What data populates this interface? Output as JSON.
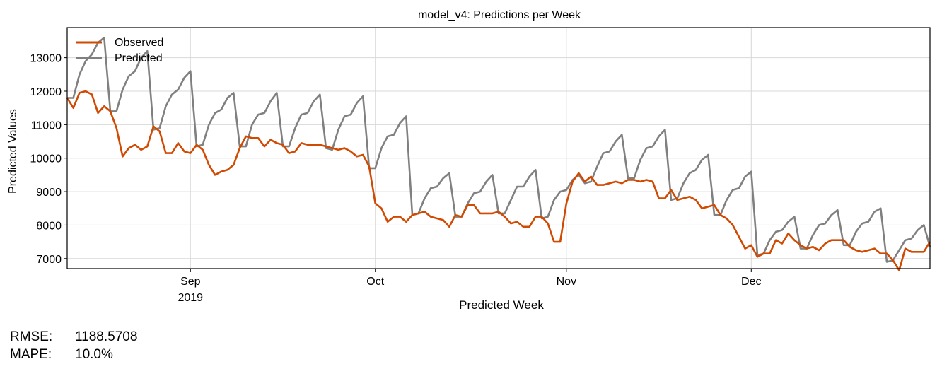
{
  "chart_data": {
    "type": "line",
    "title": "model_v4: Predictions per Week",
    "xlabel": "Predicted Week",
    "ylabel": "Predicted Values",
    "ylim": [
      6700,
      13900
    ],
    "yticks": [
      7000,
      8000,
      9000,
      10000,
      11000,
      12000,
      13000
    ],
    "x_range_day_of_year": [
      224,
      364
    ],
    "xticks": [
      {
        "label": "Sep",
        "sublabel": "2019",
        "day_of_year": 244
      },
      {
        "label": "Oct",
        "sublabel": "",
        "day_of_year": 274
      },
      {
        "label": "Nov",
        "sublabel": "",
        "day_of_year": 305
      },
      {
        "label": "Dec",
        "sublabel": "",
        "day_of_year": 335
      }
    ],
    "grid": true,
    "legend_position": "top-left",
    "series": [
      {
        "name": "Observed",
        "color": "#d04a02",
        "points": [
          [
            224,
            11800
          ],
          [
            225,
            11500
          ],
          [
            226,
            11950
          ],
          [
            227,
            12000
          ],
          [
            228,
            11900
          ],
          [
            229,
            11350
          ],
          [
            230,
            11550
          ],
          [
            231,
            11400
          ],
          [
            232,
            10900
          ],
          [
            233,
            10050
          ],
          [
            234,
            10300
          ],
          [
            235,
            10400
          ],
          [
            236,
            10250
          ],
          [
            237,
            10350
          ],
          [
            238,
            10950
          ],
          [
            239,
            10800
          ],
          [
            240,
            10150
          ],
          [
            241,
            10150
          ],
          [
            242,
            10450
          ],
          [
            243,
            10200
          ],
          [
            244,
            10150
          ],
          [
            245,
            10400
          ],
          [
            246,
            10250
          ],
          [
            247,
            9800
          ],
          [
            248,
            9500
          ],
          [
            249,
            9600
          ],
          [
            250,
            9650
          ],
          [
            251,
            9800
          ],
          [
            252,
            10300
          ],
          [
            253,
            10650
          ],
          [
            254,
            10600
          ],
          [
            255,
            10600
          ],
          [
            256,
            10350
          ],
          [
            257,
            10550
          ],
          [
            258,
            10450
          ],
          [
            259,
            10400
          ],
          [
            260,
            10150
          ],
          [
            261,
            10200
          ],
          [
            262,
            10450
          ],
          [
            263,
            10400
          ],
          [
            264,
            10400
          ],
          [
            265,
            10400
          ],
          [
            266,
            10350
          ],
          [
            267,
            10300
          ],
          [
            268,
            10250
          ],
          [
            269,
            10300
          ],
          [
            270,
            10200
          ],
          [
            271,
            10050
          ],
          [
            272,
            10100
          ],
          [
            273,
            9750
          ],
          [
            274,
            8650
          ],
          [
            275,
            8500
          ],
          [
            276,
            8100
          ],
          [
            277,
            8250
          ],
          [
            278,
            8250
          ],
          [
            279,
            8100
          ],
          [
            280,
            8300
          ],
          [
            281,
            8350
          ],
          [
            282,
            8400
          ],
          [
            283,
            8250
          ],
          [
            284,
            8200
          ],
          [
            285,
            8150
          ],
          [
            286,
            7950
          ],
          [
            287,
            8300
          ],
          [
            288,
            8250
          ],
          [
            289,
            8600
          ],
          [
            290,
            8600
          ],
          [
            291,
            8350
          ],
          [
            292,
            8350
          ],
          [
            293,
            8350
          ],
          [
            294,
            8400
          ],
          [
            295,
            8250
          ],
          [
            296,
            8050
          ],
          [
            297,
            8100
          ],
          [
            298,
            7950
          ],
          [
            299,
            7950
          ],
          [
            300,
            8250
          ],
          [
            301,
            8250
          ],
          [
            302,
            8050
          ],
          [
            303,
            7500
          ],
          [
            304,
            7500
          ],
          [
            305,
            8650
          ],
          [
            306,
            9300
          ],
          [
            307,
            9550
          ],
          [
            308,
            9300
          ],
          [
            309,
            9450
          ],
          [
            310,
            9200
          ],
          [
            311,
            9200
          ],
          [
            312,
            9250
          ],
          [
            313,
            9300
          ],
          [
            314,
            9250
          ],
          [
            315,
            9350
          ],
          [
            316,
            9350
          ],
          [
            317,
            9300
          ],
          [
            318,
            9350
          ],
          [
            319,
            9300
          ],
          [
            320,
            8800
          ],
          [
            321,
            8800
          ],
          [
            322,
            9050
          ],
          [
            323,
            8750
          ],
          [
            324,
            8800
          ],
          [
            325,
            8850
          ],
          [
            326,
            8750
          ],
          [
            327,
            8500
          ],
          [
            328,
            8550
          ],
          [
            329,
            8600
          ],
          [
            330,
            8300
          ],
          [
            331,
            8200
          ],
          [
            332,
            8000
          ],
          [
            333,
            7650
          ],
          [
            334,
            7300
          ],
          [
            335,
            7400
          ],
          [
            336,
            7050
          ],
          [
            337,
            7150
          ],
          [
            338,
            7150
          ],
          [
            339,
            7550
          ],
          [
            340,
            7450
          ],
          [
            341,
            7750
          ],
          [
            342,
            7550
          ],
          [
            343,
            7400
          ],
          [
            344,
            7300
          ],
          [
            345,
            7350
          ],
          [
            346,
            7250
          ],
          [
            347,
            7450
          ],
          [
            348,
            7550
          ],
          [
            349,
            7550
          ],
          [
            350,
            7550
          ],
          [
            351,
            7350
          ],
          [
            352,
            7250
          ],
          [
            353,
            7200
          ],
          [
            354,
            7250
          ],
          [
            355,
            7300
          ],
          [
            356,
            7150
          ],
          [
            357,
            7150
          ],
          [
            358,
            6950
          ],
          [
            359,
            6650
          ],
          [
            360,
            7300
          ],
          [
            361,
            7200
          ],
          [
            362,
            7200
          ],
          [
            363,
            7200
          ],
          [
            364,
            7500
          ]
        ]
      },
      {
        "name": "Predicted",
        "color": "#808080",
        "points": [
          [
            224,
            11800
          ],
          [
            225,
            11800
          ],
          [
            226,
            12500
          ],
          [
            227,
            12900
          ],
          [
            228,
            13100
          ],
          [
            229,
            13450
          ],
          [
            230,
            13600
          ],
          [
            231,
            11400
          ],
          [
            232,
            11400
          ],
          [
            233,
            12050
          ],
          [
            234,
            12450
          ],
          [
            235,
            12600
          ],
          [
            236,
            13000
          ],
          [
            237,
            13200
          ],
          [
            238,
            10850
          ],
          [
            239,
            10900
          ],
          [
            240,
            11550
          ],
          [
            241,
            11900
          ],
          [
            242,
            12050
          ],
          [
            243,
            12400
          ],
          [
            244,
            12600
          ],
          [
            245,
            10350
          ],
          [
            246,
            10400
          ],
          [
            247,
            11000
          ],
          [
            248,
            11350
          ],
          [
            249,
            11450
          ],
          [
            250,
            11800
          ],
          [
            251,
            11950
          ],
          [
            252,
            10350
          ],
          [
            253,
            10350
          ],
          [
            254,
            11000
          ],
          [
            255,
            11300
          ],
          [
            256,
            11350
          ],
          [
            257,
            11700
          ],
          [
            258,
            11950
          ],
          [
            259,
            10350
          ],
          [
            260,
            10350
          ],
          [
            261,
            10900
          ],
          [
            262,
            11300
          ],
          [
            263,
            11350
          ],
          [
            264,
            11700
          ],
          [
            265,
            11900
          ],
          [
            266,
            10300
          ],
          [
            267,
            10250
          ],
          [
            268,
            10850
          ],
          [
            269,
            11250
          ],
          [
            270,
            11300
          ],
          [
            271,
            11650
          ],
          [
            272,
            11850
          ],
          [
            273,
            9700
          ],
          [
            274,
            9700
          ],
          [
            275,
            10300
          ],
          [
            276,
            10650
          ],
          [
            277,
            10700
          ],
          [
            278,
            11050
          ],
          [
            279,
            11250
          ],
          [
            280,
            8300
          ],
          [
            281,
            8350
          ],
          [
            282,
            8800
          ],
          [
            283,
            9100
          ],
          [
            284,
            9150
          ],
          [
            285,
            9400
          ],
          [
            286,
            9550
          ],
          [
            287,
            8250
          ],
          [
            288,
            8250
          ],
          [
            289,
            8650
          ],
          [
            290,
            8950
          ],
          [
            291,
            9000
          ],
          [
            292,
            9300
          ],
          [
            293,
            9500
          ],
          [
            294,
            8350
          ],
          [
            295,
            8350
          ],
          [
            296,
            8750
          ],
          [
            297,
            9150
          ],
          [
            298,
            9150
          ],
          [
            299,
            9450
          ],
          [
            300,
            9650
          ],
          [
            301,
            8200
          ],
          [
            302,
            8250
          ],
          [
            303,
            8750
          ],
          [
            304,
            9000
          ],
          [
            305,
            9050
          ],
          [
            306,
            9350
          ],
          [
            307,
            9500
          ],
          [
            308,
            9250
          ],
          [
            309,
            9300
          ],
          [
            310,
            9750
          ],
          [
            311,
            10150
          ],
          [
            312,
            10200
          ],
          [
            313,
            10500
          ],
          [
            314,
            10700
          ],
          [
            315,
            9400
          ],
          [
            316,
            9400
          ],
          [
            317,
            9950
          ],
          [
            318,
            10300
          ],
          [
            319,
            10350
          ],
          [
            320,
            10650
          ],
          [
            321,
            10850
          ],
          [
            322,
            8750
          ],
          [
            323,
            8800
          ],
          [
            324,
            9250
          ],
          [
            325,
            9550
          ],
          [
            326,
            9650
          ],
          [
            327,
            9950
          ],
          [
            328,
            10100
          ],
          [
            329,
            8300
          ],
          [
            330,
            8300
          ],
          [
            331,
            8750
          ],
          [
            332,
            9050
          ],
          [
            333,
            9100
          ],
          [
            334,
            9450
          ],
          [
            335,
            9600
          ],
          [
            336,
            7100
          ],
          [
            337,
            7150
          ],
          [
            338,
            7550
          ],
          [
            339,
            7800
          ],
          [
            340,
            7850
          ],
          [
            341,
            8100
          ],
          [
            342,
            8250
          ],
          [
            343,
            7300
          ],
          [
            344,
            7300
          ],
          [
            345,
            7700
          ],
          [
            346,
            8000
          ],
          [
            347,
            8050
          ],
          [
            348,
            8300
          ],
          [
            349,
            8450
          ],
          [
            350,
            7400
          ],
          [
            351,
            7400
          ],
          [
            352,
            7800
          ],
          [
            353,
            8050
          ],
          [
            354,
            8100
          ],
          [
            355,
            8400
          ],
          [
            356,
            8500
          ],
          [
            357,
            6900
          ],
          [
            358,
            6950
          ],
          [
            359,
            7250
          ],
          [
            360,
            7550
          ],
          [
            361,
            7600
          ],
          [
            362,
            7850
          ],
          [
            363,
            8000
          ],
          [
            364,
            7350
          ]
        ]
      }
    ]
  },
  "metrics": {
    "rmse_label": "RMSE:",
    "rmse_value": "1188.5708",
    "mape_label": "MAPE:",
    "mape_value": "10.0%"
  }
}
